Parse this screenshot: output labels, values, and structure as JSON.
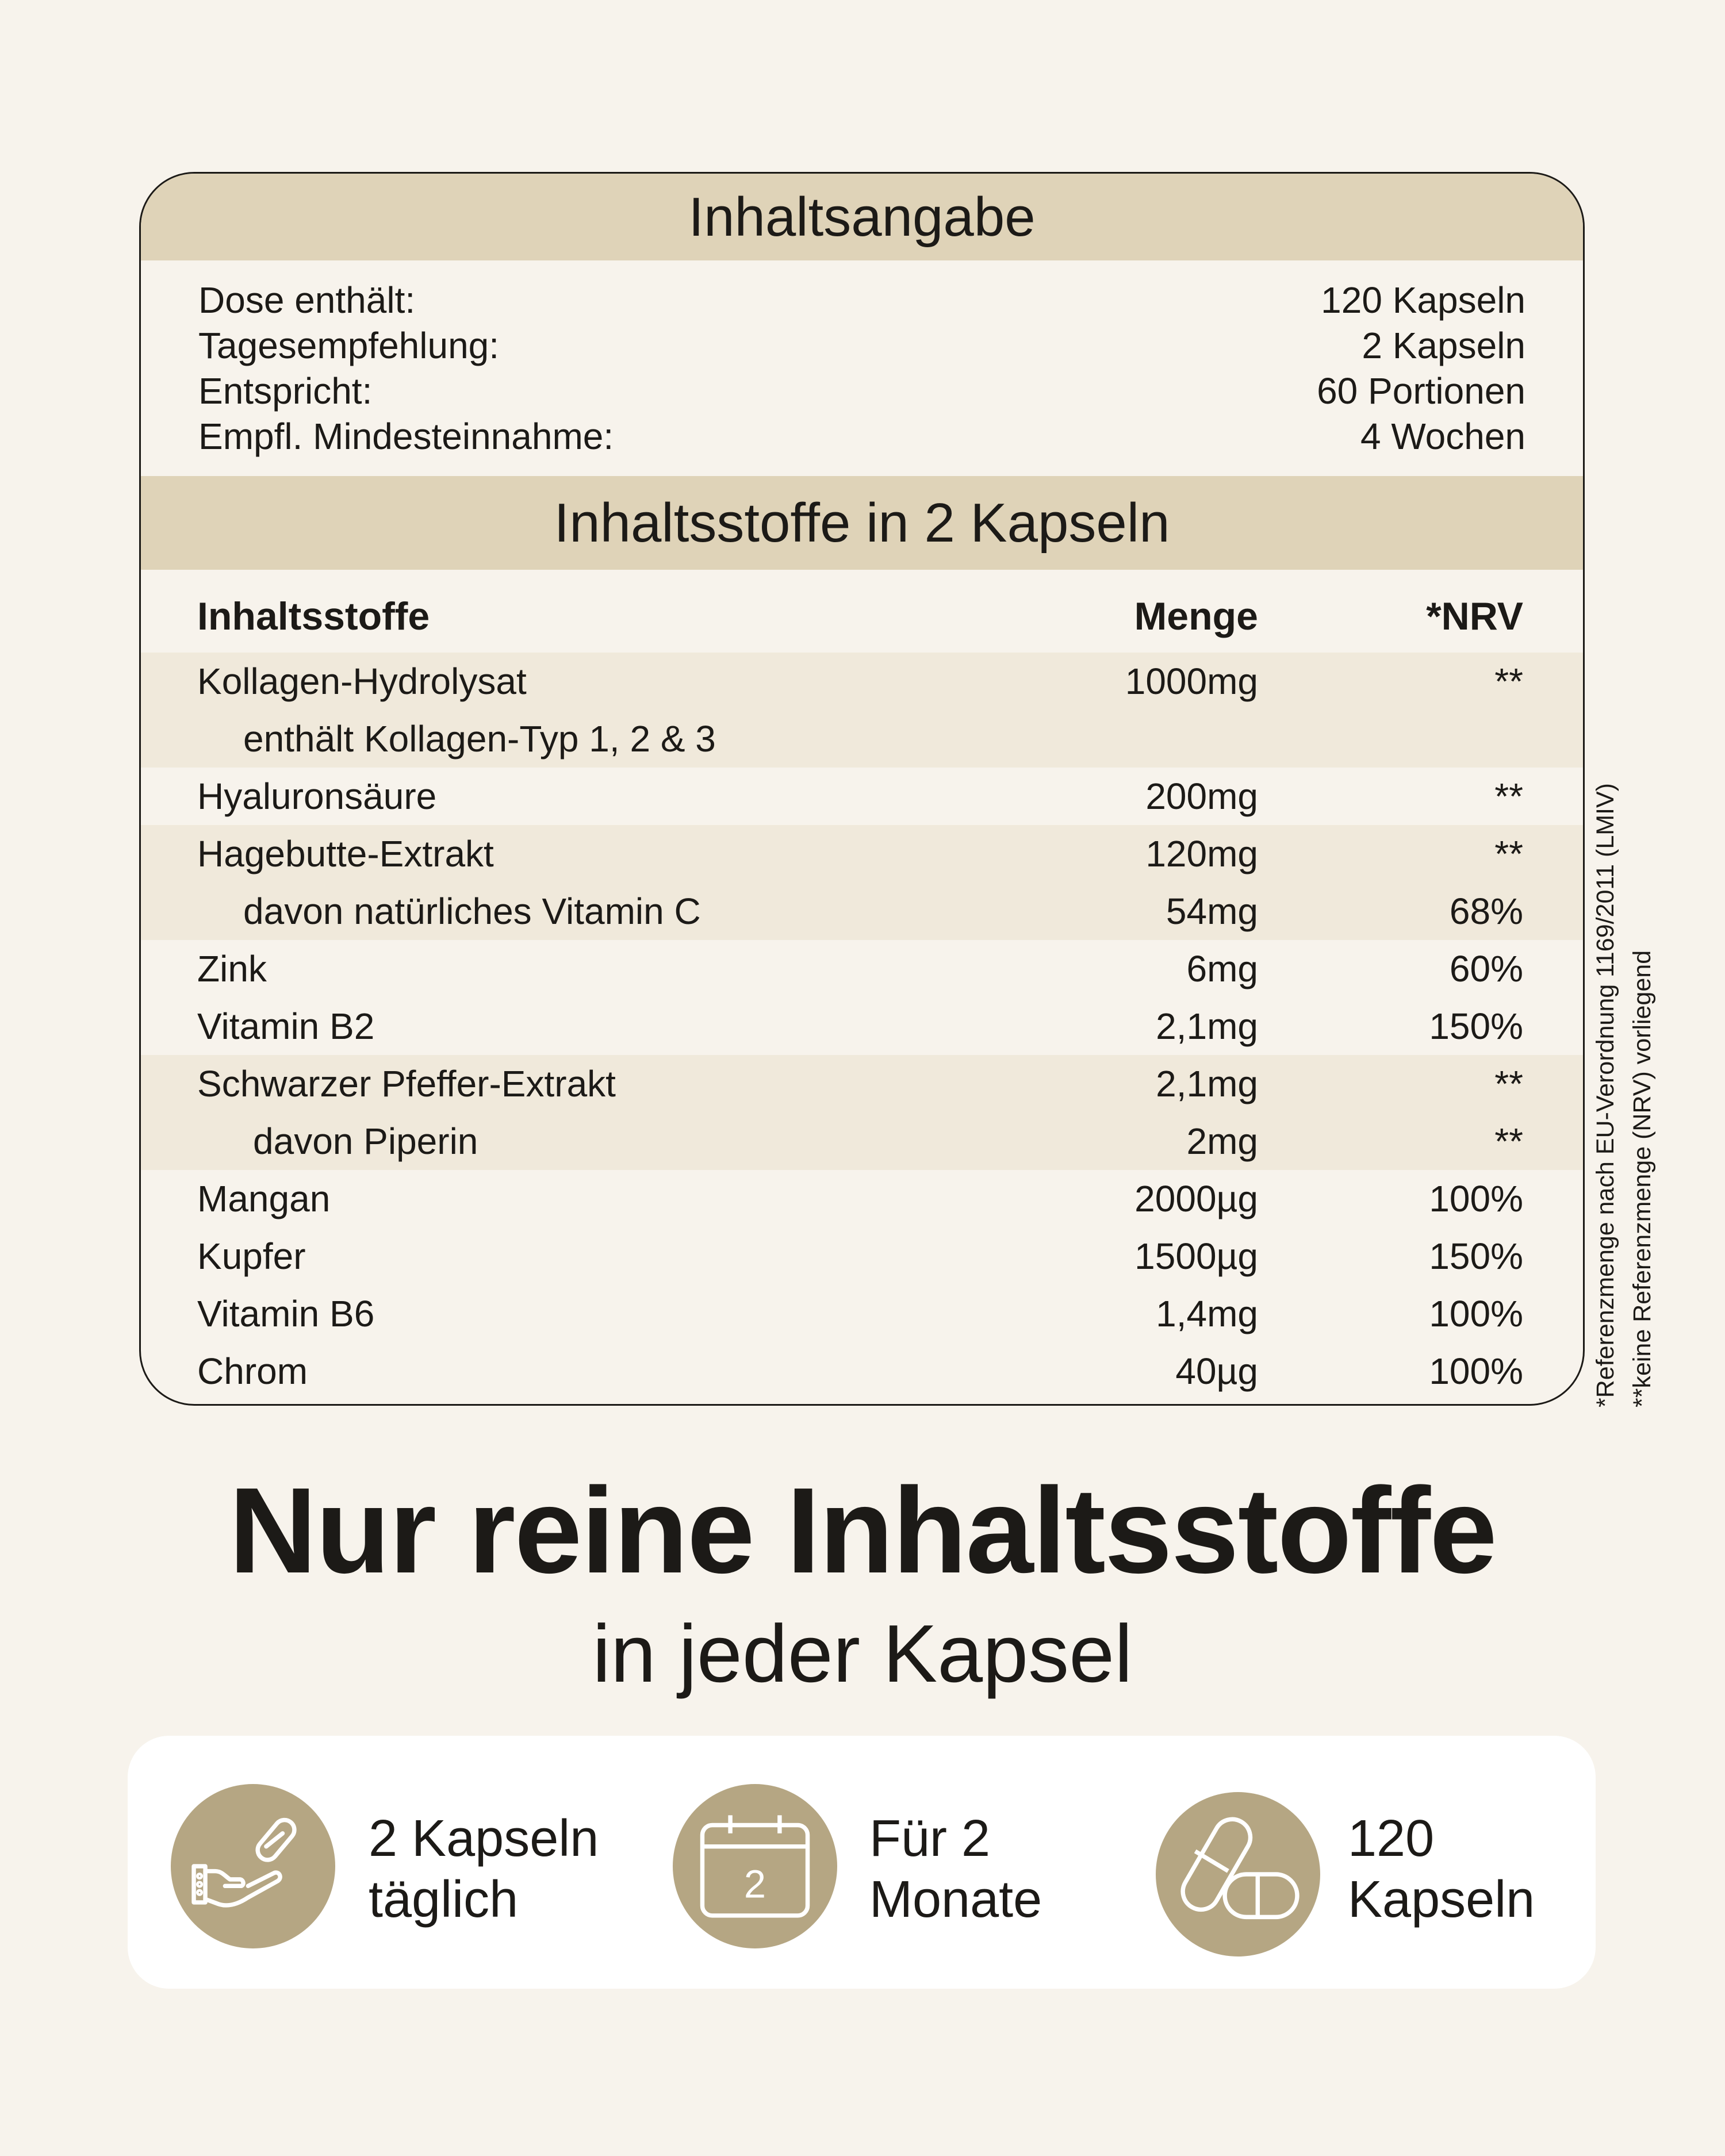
{
  "summary": {
    "title": "Inhaltsangabe",
    "rows": [
      {
        "label": "Dose enthält:",
        "value": "120 Kapseln"
      },
      {
        "label": "Tagesempfehlung:",
        "value": "2 Kapseln"
      },
      {
        "label": "Entspricht:",
        "value": "60 Portionen"
      },
      {
        "label": "Empfl. Mindesteinnahme:",
        "value": "4 Wochen"
      }
    ]
  },
  "ingredients": {
    "title": "Inhaltsstoffe in 2 Kapseln",
    "headers": {
      "name": "Inhaltsstoffe",
      "amount": "Menge",
      "nrv": "*NRV"
    },
    "rows": [
      {
        "name": "Kollagen-Hydrolysat",
        "amount": "1000mg",
        "nrv": "**"
      },
      {
        "name": "enthält Kollagen-Typ 1, 2 & 3",
        "amount": "",
        "nrv": ""
      },
      {
        "name": "Hyaluronsäure",
        "amount": "200mg",
        "nrv": "**"
      },
      {
        "name": "Hagebutte-Extrakt",
        "amount": "120mg",
        "nrv": "**"
      },
      {
        "name": "davon natürliches Vitamin C",
        "amount": "54mg",
        "nrv": "68%"
      },
      {
        "name": "Zink",
        "amount": "6mg",
        "nrv": "60%"
      },
      {
        "name": "Vitamin B2",
        "amount": "2,1mg",
        "nrv": "150%"
      },
      {
        "name": "Schwarzer Pfeffer-Extrakt",
        "amount": "2,1mg",
        "nrv": "**"
      },
      {
        "name": "davon Piperin",
        "amount": "2mg",
        "nrv": "**"
      },
      {
        "name": "Mangan",
        "amount": "2000µg",
        "nrv": "100%"
      },
      {
        "name": "Kupfer",
        "amount": "1500µg",
        "nrv": "150%"
      },
      {
        "name": "Vitamin B6",
        "amount": "1,4mg",
        "nrv": "100%"
      },
      {
        "name": "Chrom",
        "amount": "40µg",
        "nrv": "100%"
      }
    ]
  },
  "footnotes": [
    "*Referenzmenge nach EU-Verordnung 1169/2011 (LMIV)",
    "**keine Referenzmenge (NRV) vorliegend"
  ],
  "headline": "Nur reine Inhaltsstoffe",
  "subheadline": "in jeder Kapsel",
  "features": [
    {
      "icon": "hand-capsule-icon",
      "line1": "2 Kapseln",
      "line2": "täglich"
    },
    {
      "icon": "calendar-icon",
      "calendar_number": "2",
      "line1": "Für 2",
      "line2": "Monate"
    },
    {
      "icon": "capsules-icon",
      "line1": "120",
      "line2": "Kapseln"
    }
  ],
  "colors": {
    "background": "#f7f3ec",
    "header": "#dfd3b8",
    "shade": "#f0e9db",
    "icon_circle": "#b5a683"
  }
}
